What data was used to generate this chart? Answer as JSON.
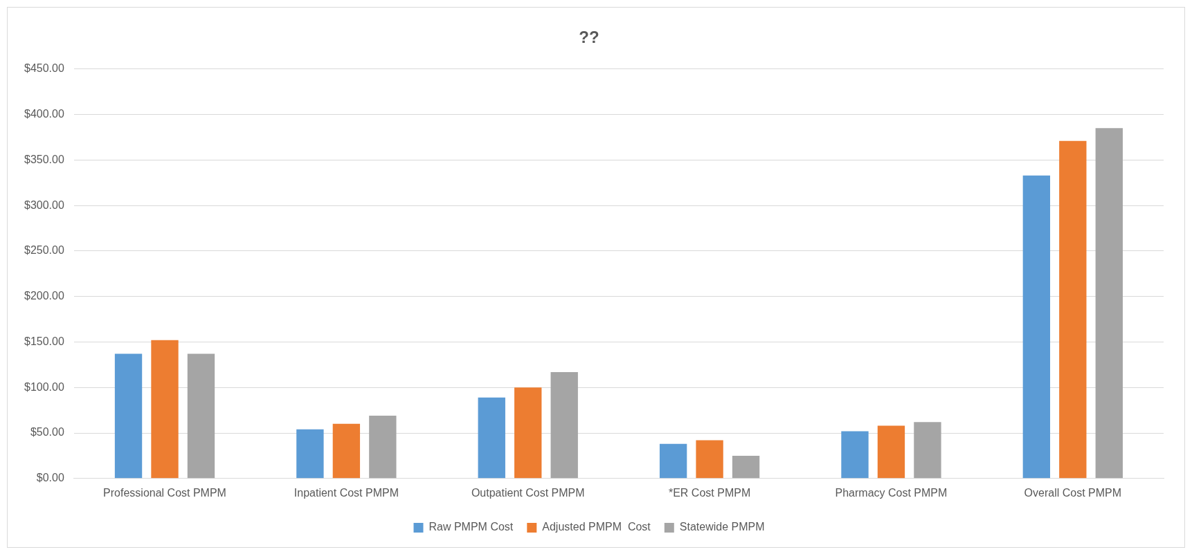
{
  "chart_data": {
    "type": "bar",
    "title": "??",
    "categories": [
      "Professional Cost PMPM",
      "Inpatient Cost PMPM",
      "Outpatient Cost PMPM",
      "*ER Cost PMPM",
      "Pharmacy Cost PMPM",
      "Overall Cost PMPM"
    ],
    "series": [
      {
        "name": "Raw PMPM Cost",
        "color": "#5b9bd5",
        "values": [
          137,
          54,
          89,
          38,
          52,
          333
        ]
      },
      {
        "name": "Adjusted PMPM  Cost",
        "color": "#ed7d31",
        "values": [
          152,
          60,
          100,
          42,
          58,
          371
        ]
      },
      {
        "name": "Statewide PMPM",
        "color": "#a5a5a5",
        "values": [
          137,
          69,
          117,
          25,
          62,
          385
        ]
      }
    ],
    "ylim": [
      0,
      450
    ],
    "yticks": [
      {
        "value": 0,
        "label": "$0.00"
      },
      {
        "value": 50,
        "label": "$50.00"
      },
      {
        "value": 100,
        "label": "$100.00"
      },
      {
        "value": 150,
        "label": "$150.00"
      },
      {
        "value": 200,
        "label": "$200.00"
      },
      {
        "value": 250,
        "label": "$250.00"
      },
      {
        "value": 300,
        "label": "$300.00"
      },
      {
        "value": 350,
        "label": "$350.00"
      },
      {
        "value": 400,
        "label": "$400.00"
      },
      {
        "value": 450,
        "label": "$450.00"
      }
    ],
    "grid": "y",
    "legend": "bottom"
  }
}
